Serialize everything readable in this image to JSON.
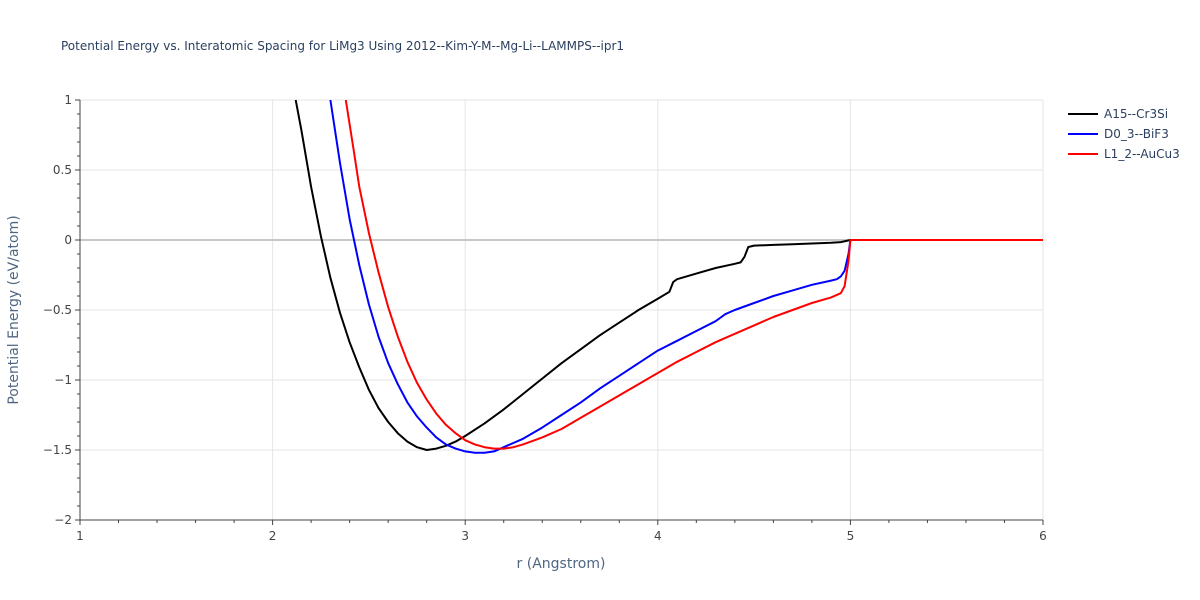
{
  "chart_data": {
    "type": "line",
    "title": "Potential Energy vs. Interatomic Spacing for LiMg3 Using 2012--Kim-Y-M--Mg-Li--LAMMPS--ipr1",
    "xlabel": "r (Angstrom)",
    "ylabel": "Potential Energy (eV/atom)",
    "xlim": [
      1,
      6
    ],
    "ylim": [
      -2,
      1
    ],
    "xticks": [
      "1",
      "2",
      "3",
      "4",
      "5",
      "6"
    ],
    "yticks": [
      "1",
      "0.5",
      "0",
      "−0.5",
      "−1",
      "−1.5",
      "−2"
    ],
    "grid": true,
    "legend_position": "top-right",
    "series": [
      {
        "name": "A15--Cr3Si",
        "color": "#000000",
        "x": [
          2.12,
          2.15,
          2.2,
          2.25,
          2.3,
          2.35,
          2.4,
          2.45,
          2.5,
          2.55,
          2.6,
          2.65,
          2.7,
          2.75,
          2.8,
          2.85,
          2.9,
          2.95,
          3.0,
          3.1,
          3.2,
          3.3,
          3.4,
          3.5,
          3.6,
          3.7,
          3.8,
          3.9,
          4.0,
          4.06,
          4.08,
          4.1,
          4.2,
          4.3,
          4.4,
          4.43,
          4.45,
          4.47,
          4.5,
          4.6,
          4.7,
          4.8,
          4.9,
          4.95,
          5.0,
          5.5,
          6.0
        ],
        "y": [
          1.0,
          0.78,
          0.38,
          0.03,
          -0.27,
          -0.52,
          -0.73,
          -0.91,
          -1.07,
          -1.2,
          -1.3,
          -1.38,
          -1.44,
          -1.48,
          -1.5,
          -1.49,
          -1.47,
          -1.44,
          -1.4,
          -1.31,
          -1.21,
          -1.1,
          -0.99,
          -0.88,
          -0.78,
          -0.68,
          -0.59,
          -0.5,
          -0.42,
          -0.37,
          -0.3,
          -0.28,
          -0.24,
          -0.2,
          -0.17,
          -0.16,
          -0.12,
          -0.05,
          -0.04,
          -0.035,
          -0.03,
          -0.025,
          -0.02,
          -0.015,
          0.0,
          0.0,
          0.0
        ]
      },
      {
        "name": "D0_3--BiF3",
        "color": "#0000ff",
        "x": [
          2.3,
          2.35,
          2.4,
          2.45,
          2.5,
          2.55,
          2.6,
          2.65,
          2.7,
          2.75,
          2.8,
          2.85,
          2.9,
          2.95,
          3.0,
          3.05,
          3.1,
          3.15,
          3.2,
          3.3,
          3.4,
          3.5,
          3.6,
          3.7,
          3.8,
          3.9,
          4.0,
          4.1,
          4.2,
          4.3,
          4.33,
          4.35,
          4.4,
          4.5,
          4.6,
          4.7,
          4.8,
          4.9,
          4.93,
          4.95,
          4.97,
          4.99,
          5.0,
          5.5,
          6.0
        ],
        "y": [
          1.0,
          0.55,
          0.15,
          -0.18,
          -0.46,
          -0.69,
          -0.88,
          -1.03,
          -1.16,
          -1.26,
          -1.34,
          -1.41,
          -1.46,
          -1.49,
          -1.51,
          -1.52,
          -1.52,
          -1.51,
          -1.48,
          -1.42,
          -1.34,
          -1.25,
          -1.16,
          -1.06,
          -0.97,
          -0.88,
          -0.79,
          -0.72,
          -0.65,
          -0.58,
          -0.55,
          -0.53,
          -0.5,
          -0.45,
          -0.4,
          -0.36,
          -0.32,
          -0.29,
          -0.28,
          -0.26,
          -0.22,
          -0.1,
          0.0,
          0.0,
          0.0
        ]
      },
      {
        "name": "L1_2--AuCu3",
        "color": "#ff0000",
        "x": [
          2.38,
          2.42,
          2.45,
          2.5,
          2.55,
          2.6,
          2.65,
          2.7,
          2.75,
          2.8,
          2.85,
          2.9,
          2.95,
          3.0,
          3.05,
          3.1,
          3.15,
          3.2,
          3.25,
          3.3,
          3.4,
          3.5,
          3.6,
          3.7,
          3.8,
          3.9,
          4.0,
          4.1,
          4.2,
          4.3,
          4.4,
          4.5,
          4.6,
          4.7,
          4.8,
          4.9,
          4.95,
          4.97,
          4.99,
          5.0,
          5.5,
          6.0
        ],
        "y": [
          1.0,
          0.65,
          0.38,
          0.05,
          -0.23,
          -0.48,
          -0.69,
          -0.87,
          -1.02,
          -1.14,
          -1.24,
          -1.32,
          -1.38,
          -1.43,
          -1.46,
          -1.48,
          -1.49,
          -1.49,
          -1.48,
          -1.46,
          -1.41,
          -1.35,
          -1.27,
          -1.19,
          -1.11,
          -1.03,
          -0.95,
          -0.87,
          -0.8,
          -0.73,
          -0.67,
          -0.61,
          -0.55,
          -0.5,
          -0.45,
          -0.41,
          -0.38,
          -0.33,
          -0.15,
          0.0,
          0.0,
          0.0
        ]
      }
    ]
  }
}
